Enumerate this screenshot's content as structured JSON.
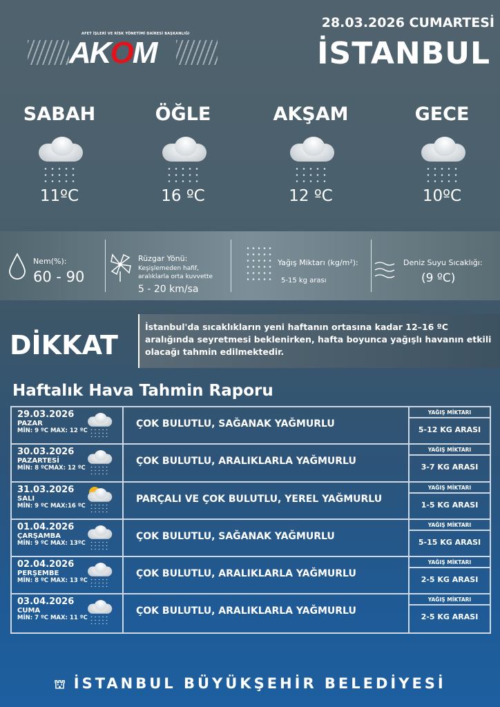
{
  "header": {
    "logo_subtitle": "AFET İŞLERİ VE RİSK YÖNETİMİ DAİRESİ BAŞKANLIĞI",
    "logo": "AKOM",
    "date": "28.03.2026 CUMARTESİ",
    "city": "İSTANBUL"
  },
  "periods": [
    {
      "name": "SABAH",
      "temp": "11ºC",
      "icon": "rain-cloud-icon"
    },
    {
      "name": "ÖĞLE",
      "temp": "16 ºC",
      "icon": "rain-cloud-icon"
    },
    {
      "name": "AKŞAM",
      "temp": "12 ºC",
      "icon": "rain-cloud-icon"
    },
    {
      "name": "GECE",
      "temp": "10ºC",
      "icon": "rain-cloud-icon"
    }
  ],
  "info": {
    "humidity_label": "Nem(%):",
    "humidity": "60 - 90",
    "wind_label": "Rüzgar Yönü:",
    "wind_desc1": "Keşişlemeden hafif,",
    "wind_desc2": "aralıklarla orta kuvvette",
    "wind": "5 - 20 km/sa",
    "rain_label": "Yağış Miktarı (kg/m²):",
    "rain": "5-15 kg arası",
    "sea_label": "Deniz Suyu Sıcaklığı:",
    "sea": "(9 ºC)"
  },
  "alert": {
    "title": "DİKKAT",
    "text": "İstanbul'da sıcaklıkların yeni haftanın ortasına kadar 12–16 ºC aralığında seyretmesi beklenirken, hafta boyunca yağışlı havanın etkili olacağı tahmin edilmektedir."
  },
  "weekly": {
    "title": "Haftalık Hava Tahmin Raporu",
    "rain_header": "YAĞIŞ MİKTARI",
    "rows": [
      {
        "date": "29.03.2026",
        "day": "PAZAR",
        "minmax": "MİN: 9 ºC MAX: 12 ºC",
        "desc": "ÇOK BULUTLU, SAĞANAK YAĞMURLU",
        "rain": "5-12 KG ARASI",
        "icon": "rain-cloud-icon"
      },
      {
        "date": "30.03.2026",
        "day": "PAZARTESİ",
        "minmax": "MİN: 8  ºCMAX: 12 ºC",
        "desc": "ÇOK BULUTLU, ARALIKLARLA YAĞMURLU",
        "rain": "3-7 KG ARASI",
        "icon": "rain-cloud-icon"
      },
      {
        "date": "31.03.2026",
        "day": "SALI",
        "minmax": "MİN: 9 ºC MAX:16 ºC",
        "desc": "PARÇALI VE ÇOK BULUTLU, YEREL YAĞMURLU",
        "rain": "1-5 KG ARASI",
        "icon": "sun-rain-cloud-icon"
      },
      {
        "date": "01.04.2026",
        "day": "ÇARŞAMBA",
        "minmax": "MİN: 9 ºC MAX: 13ºC",
        "desc": "ÇOK BULUTLU, SAĞANAK YAĞMURLU",
        "rain": "5-15 KG ARASI",
        "icon": "rain-cloud-icon"
      },
      {
        "date": "02.04.2026",
        "day": "PERŞEMBE",
        "minmax": "MİN: 8 ºC MAX: 13 ºC",
        "desc": "ÇOK BULUTLU, ARALIKLARLA YAĞMURLU",
        "rain": "2-5 KG ARASI",
        "icon": "rain-cloud-icon"
      },
      {
        "date": "03.04.2026",
        "day": "CUMA",
        "minmax": "MİN: 7 ºC MAX: 11 ºC",
        "desc": "ÇOK BULUTLU, ARALIKLARLA YAĞMURLU",
        "rain": "2-5 KG ARASI",
        "icon": "rain-cloud-icon"
      }
    ]
  },
  "footer": {
    "text": "İSTANBUL BÜYÜKŞEHİR BELEDİYESİ"
  },
  "colors": {
    "logo_red": "#e3131b",
    "footer_blue": "#1d5fa0"
  }
}
